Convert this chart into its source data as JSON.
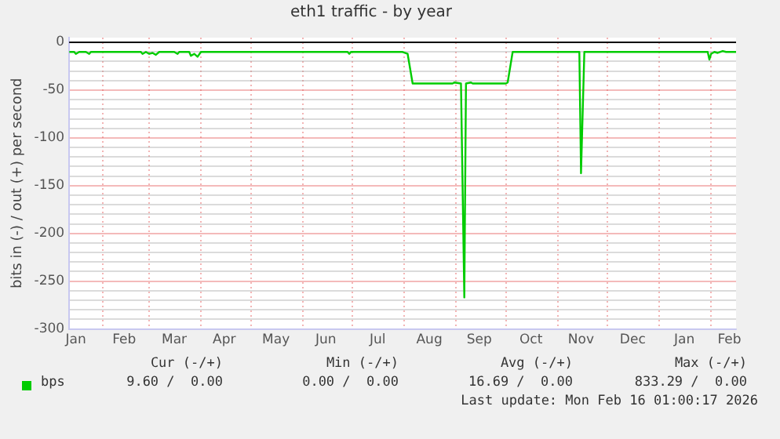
{
  "chart_data": {
    "type": "line",
    "title": "eth1 traffic - by year",
    "ylabel": "bits in (-) / out (+) per second",
    "x": [
      "2025-01-12",
      "2025-01-15",
      "2025-01-16",
      "2025-01-18",
      "2025-01-22",
      "2025-01-24",
      "2025-01-25",
      "2025-02-24",
      "2025-02-25",
      "2025-02-27",
      "2025-03-01",
      "2025-03-03",
      "2025-03-05",
      "2025-03-07",
      "2025-03-16",
      "2025-03-18",
      "2025-03-19",
      "2025-03-25",
      "2025-03-26",
      "2025-03-28",
      "2025-03-30",
      "2025-04-01",
      "2025-06-28",
      "2025-06-29",
      "2025-06-30",
      "2025-07-31",
      "2025-08-03",
      "2025-08-06",
      "2025-08-30",
      "2025-08-31",
      "2025-09-04",
      "2025-09-06",
      "2025-09-07",
      "2025-09-10",
      "2025-09-11",
      "2025-10-01",
      "2025-10-02",
      "2025-10-05",
      "2025-11-14",
      "2025-11-15",
      "2025-11-17",
      "2025-12-01",
      "2026-01-30",
      "2026-01-31",
      "2026-02-01",
      "2026-02-03",
      "2026-02-05",
      "2026-02-08",
      "2026-02-10",
      "2026-02-16"
    ],
    "series": [
      {
        "name": "bps",
        "color": "#00cc00",
        "values": [
          -10,
          -10,
          -12,
          -10,
          -10,
          -12,
          -10,
          -10,
          -12,
          -10,
          -12,
          -11,
          -13,
          -10,
          -10,
          -12,
          -10,
          -10,
          -14,
          -12,
          -15,
          -10,
          -10,
          -12,
          -10,
          -10,
          -12,
          -43,
          -43,
          -42,
          -43,
          -267,
          -43,
          -42,
          -43,
          -43,
          -42,
          -10,
          -10,
          -137,
          -10,
          -10,
          -10,
          -18,
          -12,
          -10,
          -11,
          -9,
          -10,
          -10
        ]
      }
    ],
    "xlim": [
      "2025-01-12",
      "2026-02-16"
    ],
    "xticks": [
      {
        "value": "2025-01-16",
        "label": "Jan"
      },
      {
        "value": "2025-02-01",
        "label": null
      },
      {
        "value": "2025-02-14",
        "label": "Feb"
      },
      {
        "value": "2025-03-01",
        "label": null
      },
      {
        "value": "2025-03-16",
        "label": "Mar"
      },
      {
        "value": "2025-04-01",
        "label": null
      },
      {
        "value": "2025-04-15",
        "label": "Apr"
      },
      {
        "value": "2025-05-01",
        "label": null
      },
      {
        "value": "2025-05-16",
        "label": "May"
      },
      {
        "value": "2025-06-01",
        "label": null
      },
      {
        "value": "2025-06-15",
        "label": "Jun"
      },
      {
        "value": "2025-07-01",
        "label": null
      },
      {
        "value": "2025-07-16",
        "label": "Jul"
      },
      {
        "value": "2025-08-01",
        "label": null
      },
      {
        "value": "2025-08-16",
        "label": "Aug"
      },
      {
        "value": "2025-09-01",
        "label": null
      },
      {
        "value": "2025-09-15",
        "label": "Sep"
      },
      {
        "value": "2025-10-01",
        "label": null
      },
      {
        "value": "2025-10-16",
        "label": "Oct"
      },
      {
        "value": "2025-11-01",
        "label": null
      },
      {
        "value": "2025-11-15",
        "label": "Nov"
      },
      {
        "value": "2025-12-01",
        "label": null
      },
      {
        "value": "2025-12-16",
        "label": "Dec"
      },
      {
        "value": "2026-01-01",
        "label": null
      },
      {
        "value": "2026-01-16",
        "label": "Jan"
      },
      {
        "value": "2026-02-01",
        "label": null
      },
      {
        "value": "2026-02-12",
        "label": "Feb"
      }
    ],
    "ylim": [
      -300,
      5
    ],
    "yticks": [
      -300,
      {
        "value": -290,
        "label": null
      },
      {
        "value": -280,
        "label": null
      },
      {
        "value": -270,
        "label": null
      },
      {
        "value": -260,
        "label": null
      },
      -250,
      {
        "value": -240,
        "label": null
      },
      {
        "value": -230,
        "label": null
      },
      {
        "value": -220,
        "label": null
      },
      {
        "value": -210,
        "label": null
      },
      -200,
      {
        "value": -190,
        "label": null
      },
      {
        "value": -180,
        "label": null
      },
      {
        "value": -170,
        "label": null
      },
      {
        "value": -160,
        "label": null
      },
      -150,
      {
        "value": -140,
        "label": null
      },
      {
        "value": -130,
        "label": null
      },
      {
        "value": -120,
        "label": null
      },
      {
        "value": -110,
        "label": null
      },
      -100,
      {
        "value": -90,
        "label": null
      },
      {
        "value": -80,
        "label": null
      },
      {
        "value": -70,
        "label": null
      },
      {
        "value": -60,
        "label": null
      },
      -50,
      {
        "value": -40,
        "label": null
      },
      {
        "value": -30,
        "label": null
      },
      {
        "value": -20,
        "label": null
      },
      {
        "value": -10,
        "label": null
      },
      0
    ],
    "ref_lines": [
      {
        "axis": "y",
        "value": 0,
        "color": "#000000"
      }
    ],
    "grid": true,
    "legend": "bottom",
    "marker": "none",
    "line_style": "solid",
    "annotations": [
      "Cur (-/+)",
      "Min (-/+)",
      "Avg (-/+)",
      "Max (-/+)",
      "9.60 /  0.00",
      "0.00 /  0.00",
      "16.69 /  0.00",
      "833.29 /  0.00",
      "Last update: Mon Feb 16 01:00:17 2026"
    ]
  }
}
